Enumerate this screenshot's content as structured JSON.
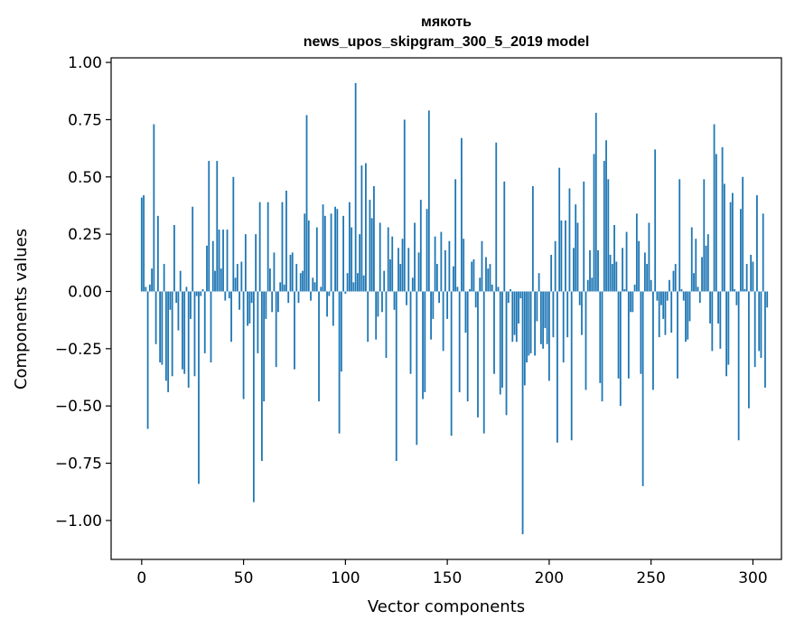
{
  "chart_data": {
    "type": "bar",
    "title": "мякоть",
    "subtitle": "news_upos_skipgram_300_5_2019 model",
    "xlabel": "Vector components",
    "ylabel": "Components values",
    "xlim": [
      -15,
      314
    ],
    "ylim": [
      -1.17,
      1.02
    ],
    "xticks": [
      0,
      50,
      100,
      150,
      200,
      250,
      300
    ],
    "xtick_labels": [
      "0",
      "50",
      "100",
      "150",
      "200",
      "250",
      "300"
    ],
    "yticks": [
      1.0,
      0.75,
      0.5,
      0.25,
      0.0,
      -0.25,
      -0.5,
      -0.75,
      -1.0
    ],
    "ytick_labels": [
      "1.00",
      "0.75",
      "0.50",
      "0.25",
      "0.00",
      "−0.25",
      "−0.50",
      "−0.75",
      "−1.00"
    ],
    "bar_color": "#1f77b4",
    "values": [
      0.41,
      0.42,
      0.02,
      -0.6,
      0.03,
      0.1,
      0.73,
      -0.23,
      0.33,
      -0.31,
      -0.32,
      0.12,
      -0.39,
      -0.44,
      -0.08,
      -0.37,
      0.29,
      -0.05,
      -0.17,
      0.09,
      -0.34,
      -0.36,
      0.02,
      -0.42,
      -0.12,
      0.37,
      -0.37,
      -0.02,
      -0.84,
      -0.02,
      0.01,
      -0.27,
      0.2,
      0.57,
      -0.31,
      0.22,
      0.09,
      0.57,
      0.27,
      0.1,
      0.27,
      -0.04,
      0.27,
      -0.03,
      -0.22,
      0.5,
      0.06,
      0.12,
      -0.08,
      0.13,
      -0.47,
      0.25,
      -0.15,
      -0.14,
      -0.05,
      -0.92,
      0.25,
      -0.27,
      0.39,
      -0.74,
      -0.48,
      -0.12,
      0.39,
      0.1,
      -0.09,
      0.17,
      -0.33,
      -0.09,
      0.04,
      0.39,
      0.03,
      0.44,
      -0.05,
      0.16,
      0.17,
      -0.34,
      0.12,
      -0.05,
      0.08,
      0.09,
      0.34,
      0.77,
      0.31,
      -0.04,
      0.06,
      0.04,
      0.28,
      -0.48,
      0.02,
      0.38,
      0.33,
      -0.11,
      -0.02,
      0.34,
      -0.15,
      0.37,
      0.36,
      -0.62,
      -0.35,
      0.33,
      -0.01,
      0.08,
      0.39,
      0.28,
      0.04,
      0.91,
      0.08,
      0.25,
      0.55,
      0.07,
      0.56,
      -0.22,
      0.4,
      0.32,
      0.46,
      -0.21,
      -0.11,
      0.3,
      -0.09,
      0.09,
      -0.29,
      0.28,
      0.14,
      0.24,
      -0.08,
      -0.74,
      0.19,
      0.12,
      0.23,
      0.75,
      -0.06,
      0.19,
      -0.36,
      0.06,
      0.3,
      -0.67,
      0.17,
      0.4,
      -0.47,
      -0.44,
      0.36,
      0.79,
      -0.21,
      -0.12,
      0.24,
      0.12,
      -0.05,
      0.26,
      -0.26,
      0.18,
      -0.12,
      0.22,
      -0.63,
      0.11,
      0.49,
      0.02,
      -0.44,
      0.67,
      0.23,
      -0.18,
      -0.48,
      0.01,
      0.13,
      0.14,
      -0.07,
      -0.55,
      0.06,
      0.22,
      -0.62,
      0.15,
      0.1,
      0.12,
      0.03,
      -0.36,
      0.65,
      0.02,
      -0.45,
      -0.42,
      0.48,
      -0.54,
      -0.05,
      0.01,
      -0.22,
      -0.19,
      -0.22,
      -0.14,
      -0.03,
      -1.06,
      -0.41,
      -0.31,
      -0.28,
      -0.27,
      0.46,
      -0.28,
      -0.13,
      0.08,
      -0.23,
      -0.25,
      -0.16,
      -0.23,
      -0.39,
      0.16,
      -0.2,
      0.22,
      -0.66,
      0.54,
      0.31,
      -0.31,
      0.31,
      -0.2,
      0.45,
      -0.65,
      0.19,
      0.38,
      0.3,
      -0.06,
      -0.19,
      0.48,
      -0.43,
      0.05,
      0.18,
      0.06,
      0.6,
      0.78,
      0.18,
      -0.4,
      -0.48,
      0.57,
      0.66,
      0.49,
      0.16,
      0.12,
      0.29,
      0.13,
      -0.38,
      -0.5,
      0.19,
      0.01,
      0.26,
      -0.38,
      -0.09,
      -0.09,
      0.03,
      0.34,
      0.22,
      -0.36,
      -0.85,
      0.17,
      0.12,
      0.3,
      0.05,
      -0.43,
      0.62,
      -0.04,
      -0.2,
      -0.06,
      -0.12,
      -0.19,
      -0.04,
      0.05,
      -0.18,
      0.09,
      0.12,
      -0.38,
      0.49,
      0.01,
      -0.04,
      -0.22,
      -0.21,
      -0.13,
      0.28,
      0.08,
      0.23,
      0.02,
      -0.05,
      0.15,
      0.49,
      0.2,
      0.25,
      -0.14,
      -0.26,
      0.73,
      0.6,
      -0.14,
      -0.25,
      0.63,
      0.47,
      -0.37,
      -0.32,
      0.39,
      0.43,
      0.01,
      -0.06,
      -0.65,
      0.36,
      0.5,
      0.01,
      0.12,
      -0.51,
      0.16,
      0.13,
      -0.33,
      0.42,
      -0.26,
      -0.29,
      0.34,
      -0.42,
      -0.07
    ]
  }
}
